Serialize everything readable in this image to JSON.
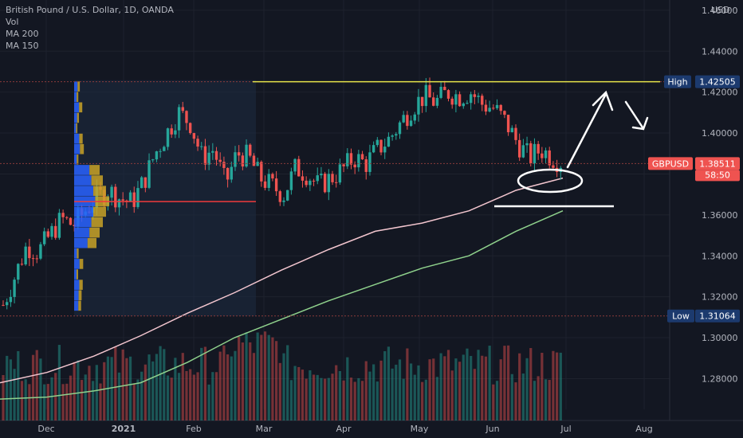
{
  "header": {
    "title": "British Pound / U.S. Dollar, 1D, OANDA",
    "vol_label": "Vol",
    "ma200_label": "MA 200",
    "ma150_label": "MA 150",
    "currency": "USD"
  },
  "colors": {
    "background": "#131722",
    "up": "#26a69a",
    "down": "#ef5350",
    "high_line": "#e6e44a",
    "ma200": "#f3c6cf",
    "ma150": "#8fd18c",
    "vp_up": "#2962ff",
    "vp_down": "#c9a227",
    "poc": "#ef3b3b",
    "label_blue": "#1c3a6e",
    "label_red": "#ef5350",
    "drawing": "#ffffff"
  },
  "chart_data": {
    "type": "candlestick",
    "title": "British Pound / U.S. Dollar, 1D, OANDA",
    "y_axis": {
      "unit": "USD",
      "ylim": [
        1.265,
        1.465
      ],
      "ticks": [
        "1.46000",
        "1.44000",
        "1.42000",
        "1.40000",
        "1.38000",
        "1.36000",
        "1.34000",
        "1.32000",
        "1.30000",
        "1.28000"
      ]
    },
    "x_axis": {
      "ticks": [
        "Dec",
        "2021",
        "Feb",
        "Mar",
        "Apr",
        "May",
        "Jun",
        "Jul",
        "Aug"
      ]
    },
    "price_labels": [
      {
        "name": "High",
        "value": "1.42505"
      },
      {
        "name": "GBPUSD",
        "value": "1.38511",
        "countdown": "58:50"
      },
      {
        "name": "Low",
        "value": "1.31064"
      }
    ],
    "series": [
      {
        "name": "MA 200",
        "values": [
          1.278,
          1.283,
          1.291,
          1.301,
          1.312,
          1.322,
          1.333,
          1.343,
          1.352,
          1.356,
          1.362,
          1.372,
          1.378
        ]
      },
      {
        "name": "MA 150",
        "values": [
          1.27,
          1.271,
          1.274,
          1.278,
          1.288,
          1.3,
          1.309,
          1.318,
          1.326,
          1.334,
          1.34,
          1.352,
          1.362
        ]
      }
    ],
    "close_path": [
      1.316,
      1.33,
      1.345,
      1.342,
      1.35,
      1.358,
      1.355,
      1.362,
      1.368,
      1.372,
      1.368,
      1.366,
      1.376,
      1.39,
      1.4,
      1.41,
      1.405,
      1.388,
      1.392,
      1.375,
      1.39,
      1.388,
      1.378,
      1.374,
      1.37,
      1.383,
      1.38,
      1.374,
      1.378,
      1.382,
      1.388,
      1.385,
      1.392,
      1.397,
      1.405,
      1.413,
      1.418,
      1.415,
      1.42,
      1.418,
      1.42,
      1.414,
      1.412,
      1.405,
      1.395,
      1.388,
      1.392,
      1.388,
      1.385
    ]
  }
}
